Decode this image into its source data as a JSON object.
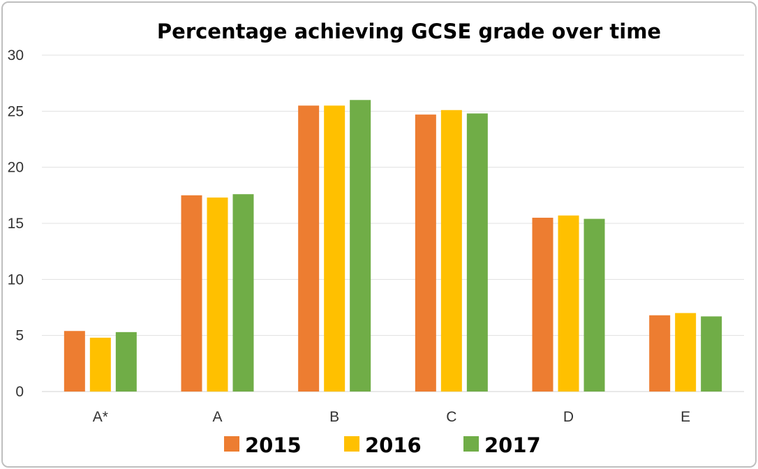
{
  "chart_data": {
    "type": "bar",
    "title": "Percentage achieving GCSE grade over time",
    "categories": [
      "A*",
      "A",
      "B",
      "C",
      "D",
      "E"
    ],
    "series": [
      {
        "name": "2015",
        "color": "#ED7D31",
        "values": [
          5.4,
          17.5,
          25.5,
          24.7,
          15.5,
          6.8
        ]
      },
      {
        "name": "2016",
        "color": "#FFC000",
        "values": [
          4.8,
          17.3,
          25.5,
          25.1,
          15.7,
          7.0
        ]
      },
      {
        "name": "2017",
        "color": "#70AD47",
        "values": [
          5.3,
          17.6,
          26.0,
          24.8,
          15.4,
          6.7
        ]
      }
    ],
    "yticks": [
      "0",
      "5",
      "10",
      "15",
      "20",
      "25",
      "30"
    ],
    "ylim": [
      0,
      30
    ],
    "grid": true,
    "legend_position": "bottom"
  }
}
